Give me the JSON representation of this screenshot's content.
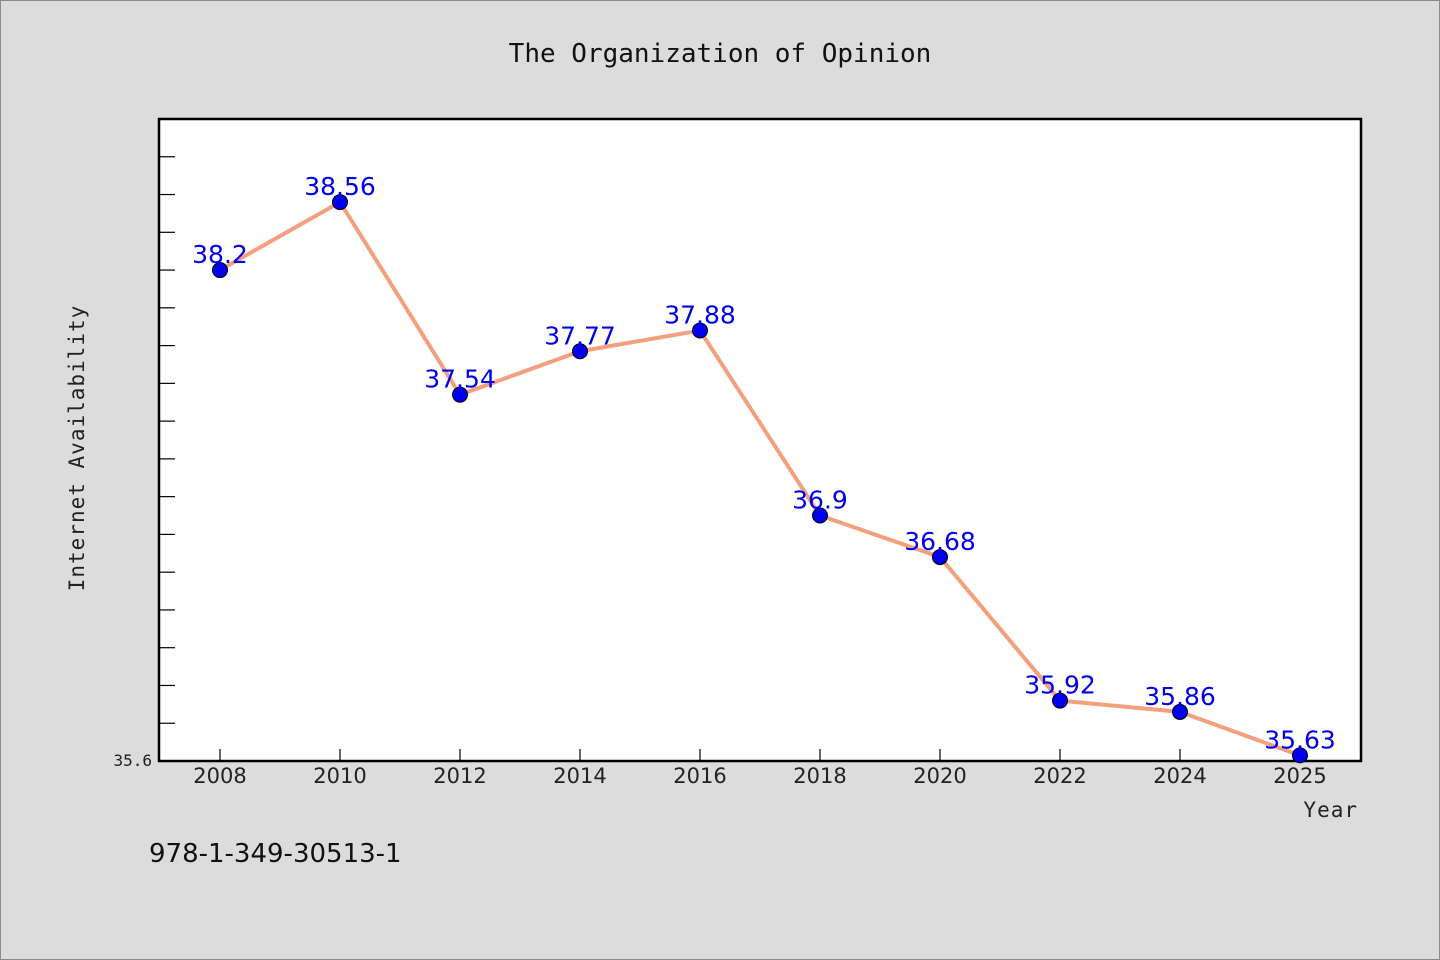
{
  "chart_data": {
    "type": "line",
    "title": "The Organization of Opinion",
    "xlabel": "Year",
    "ylabel": "Internet Availability",
    "categories": [
      "2008",
      "2010",
      "2012",
      "2014",
      "2016",
      "2018",
      "2020",
      "2022",
      "2024",
      "2025"
    ],
    "values": [
      38.2,
      38.56,
      37.54,
      37.77,
      37.88,
      36.9,
      36.68,
      35.92,
      35.86,
      35.63
    ],
    "data_labels": [
      "38.2",
      "38.56",
      "37.54",
      "37.77",
      "37.88",
      "36.9",
      "36.68",
      "35.92",
      "35.86",
      "35.63"
    ],
    "ylim": [
      35.6,
      39.0
    ],
    "ytick_labels": [
      "35.6"
    ],
    "line_color": "#f4a07e",
    "marker_color": "#0000ee",
    "label_color": "#0000ee",
    "grid": false,
    "legend": "none"
  },
  "footer_text": "978-1-349-30513-1"
}
